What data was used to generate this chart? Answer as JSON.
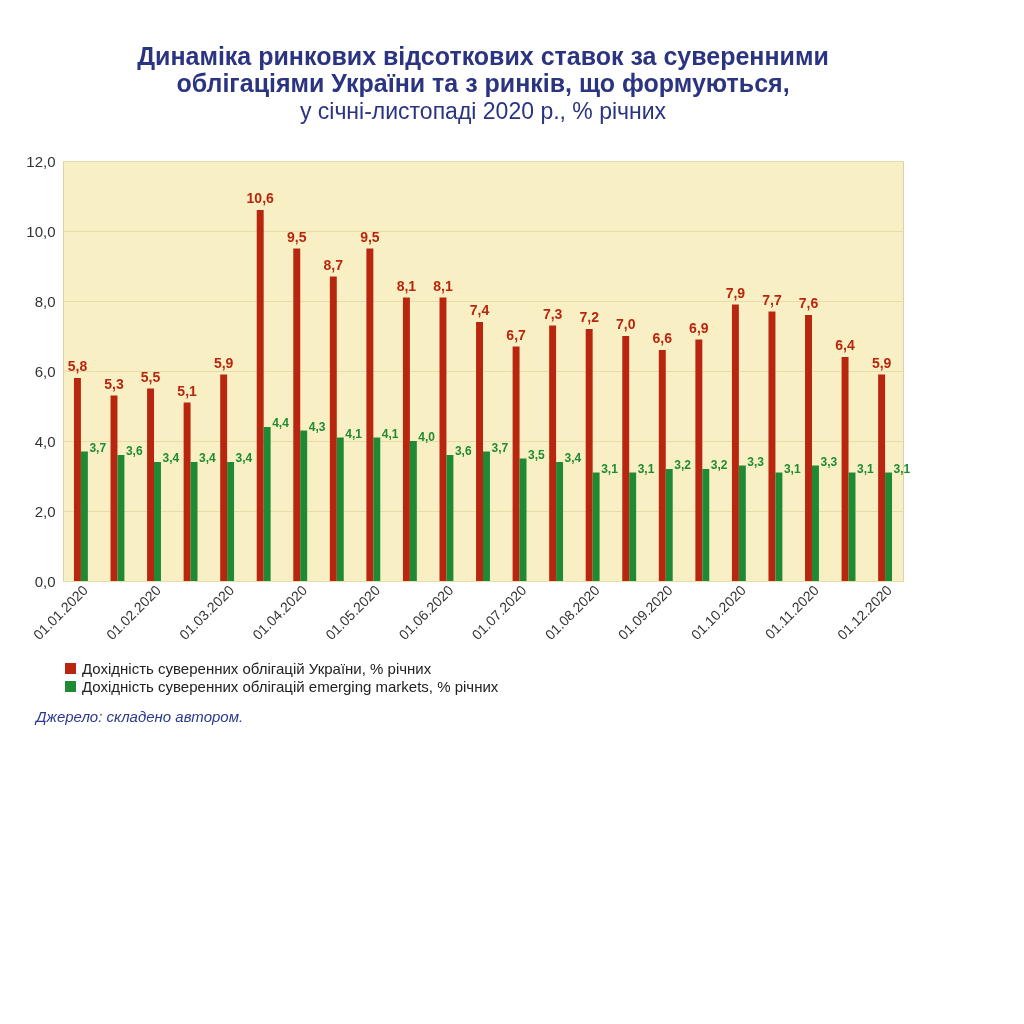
{
  "chart_data": {
    "type": "bar",
    "title": "Динаміка ринкових відсоткових ставок за суверенними облігаціями України та з ринків, що формуються,",
    "subtitle": "у січні-листопаді 2020 р., % річних",
    "categories": [
      "01.01.2020",
      null,
      "01.02.2020",
      null,
      "01.03.2020",
      null,
      "01.04.2020",
      null,
      "01.05.2020",
      null,
      "01.06.2020",
      null,
      "01.07.2020",
      null,
      "01.08.2020",
      null,
      "01.09.2020",
      null,
      "01.10.2020",
      null,
      "01.11.2020",
      null,
      "01.12.2020"
    ],
    "series": [
      {
        "name": "Дохідність суверенних облігацій України, % річних",
        "color": "#b8260f",
        "values": [
          5.8,
          5.3,
          5.5,
          5.1,
          5.9,
          10.6,
          9.5,
          8.7,
          9.5,
          8.1,
          8.1,
          7.4,
          6.7,
          7.3,
          7.2,
          7.0,
          6.6,
          6.9,
          7.9,
          7.7,
          7.6,
          6.4,
          5.9
        ],
        "value_labels": [
          "5,8",
          "5,3",
          "5,5",
          "5,1",
          "5,9",
          "10,6",
          "9,5",
          "8,7",
          "9,5",
          "8,1",
          "8,1",
          "7,4",
          "6,7",
          "7,3",
          "7,2",
          "7,0",
          "6,6",
          "6,9",
          "7,9",
          "7,7",
          "7,6",
          "6,4",
          "5,9"
        ]
      },
      {
        "name": "Дохідність суверенних облігацій  emerging markets, % річних",
        "color": "#1e8a34",
        "values": [
          3.7,
          3.6,
          3.4,
          3.4,
          3.4,
          4.4,
          4.3,
          4.1,
          4.1,
          4.0,
          3.6,
          3.7,
          3.5,
          3.4,
          3.1,
          3.1,
          3.2,
          3.2,
          3.3,
          3.1,
          3.3,
          3.1,
          3.1
        ],
        "value_labels": [
          "3,7",
          "3,6",
          "3,4",
          "3,4",
          "3,4",
          "4,4",
          "4,3",
          "4,1",
          "4,1",
          "4,0",
          "3,6",
          "3,7",
          "3,5",
          "3,4",
          "3,1",
          "3,1",
          "3,2",
          "3,2",
          "3,3",
          "3,1",
          "3,3",
          "3,1",
          "3,1"
        ]
      }
    ],
    "ylim": [
      0,
      12
    ],
    "yticks": [
      {
        "value": 0,
        "label": "0,0"
      },
      {
        "value": 2,
        "label": "2,0"
      },
      {
        "value": 4,
        "label": "4,0"
      },
      {
        "value": 6,
        "label": "6,0"
      },
      {
        "value": 8,
        "label": "8,0"
      },
      {
        "value": 10,
        "label": "10,0"
      },
      {
        "value": 12,
        "label": "12,0"
      }
    ],
    "grid": "y",
    "legend": "bottom",
    "annotations": [
      "Джерело: складено автором."
    ]
  }
}
